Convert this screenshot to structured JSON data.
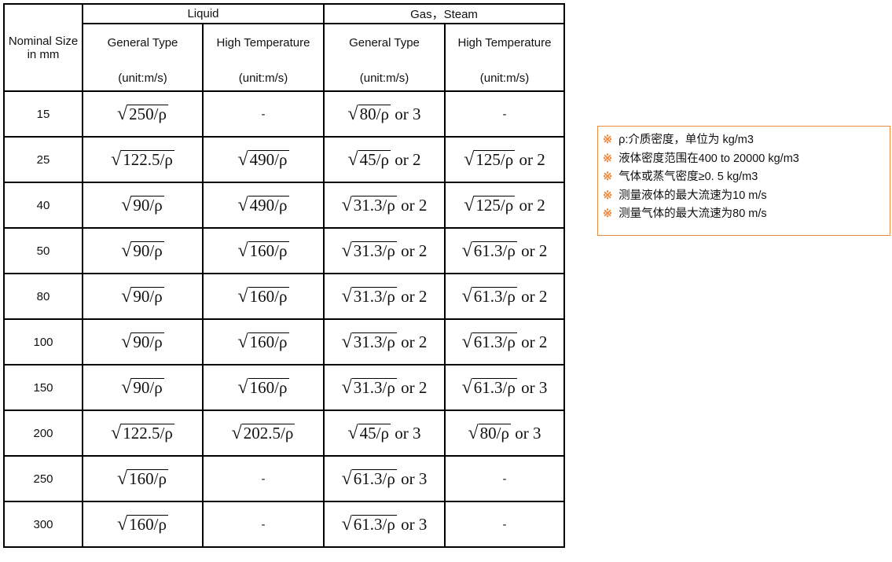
{
  "header": {
    "size": "Nominal Size in mm",
    "liquid": "Liquid",
    "gas": "Gas，Steam",
    "general": "General Type",
    "high": "High Temperature",
    "unit": "(unit:m/s)"
  },
  "rows": [
    {
      "size": "15",
      "cells": [
        {
          "r": "250/ρ",
          "s": ""
        },
        {
          "dash": "-"
        },
        {
          "r": "80/ρ",
          "s": "or 3"
        },
        {
          "dash": "-"
        }
      ]
    },
    {
      "size": "25",
      "cells": [
        {
          "r": "122.5/ρ",
          "s": ""
        },
        {
          "r": "490/ρ",
          "s": ""
        },
        {
          "r": "45/ρ",
          "s": "or 2"
        },
        {
          "r": "125/ρ",
          "s": "or 2"
        }
      ]
    },
    {
      "size": "40",
      "cells": [
        {
          "r": "90/ρ",
          "s": ""
        },
        {
          "r": "490/ρ",
          "s": ""
        },
        {
          "r": "31.3/ρ",
          "s": "or 2"
        },
        {
          "r": "125/ρ",
          "s": "or 2"
        }
      ]
    },
    {
      "size": "50",
      "cells": [
        {
          "r": "90/ρ",
          "s": ""
        },
        {
          "r": "160/ρ",
          "s": ""
        },
        {
          "r": "31.3/ρ",
          "s": "or 2"
        },
        {
          "r": "61.3/ρ",
          "s": "or 2"
        }
      ]
    },
    {
      "size": "80",
      "cells": [
        {
          "r": "90/ρ",
          "s": ""
        },
        {
          "r": "160/ρ",
          "s": ""
        },
        {
          "r": "31.3/ρ",
          "s": "or 2"
        },
        {
          "r": "61.3/ρ",
          "s": "or 2"
        }
      ]
    },
    {
      "size": "100",
      "cells": [
        {
          "r": "90/ρ",
          "s": ""
        },
        {
          "r": "160/ρ",
          "s": ""
        },
        {
          "r": "31.3/ρ",
          "s": "or 2"
        },
        {
          "r": "61.3/ρ",
          "s": "or 2"
        }
      ]
    },
    {
      "size": "150",
      "cells": [
        {
          "r": "90/ρ",
          "s": ""
        },
        {
          "r": "160/ρ",
          "s": ""
        },
        {
          "r": "31.3/ρ",
          "s": "or 2"
        },
        {
          "r": "61.3/ρ",
          "s": "or 3"
        }
      ]
    },
    {
      "size": "200",
      "cells": [
        {
          "r": "122.5/ρ",
          "s": ""
        },
        {
          "r": "202.5/ρ",
          "s": ""
        },
        {
          "r": "45/ρ",
          "s": "or 3"
        },
        {
          "r": "80/ρ",
          "s": "or 3"
        }
      ]
    },
    {
      "size": "250",
      "cells": [
        {
          "r": "160/ρ",
          "s": ""
        },
        {
          "dash": "-"
        },
        {
          "r": "61.3/ρ",
          "s": "or 3"
        },
        {
          "dash": "-"
        }
      ]
    },
    {
      "size": "300",
      "cells": [
        {
          "r": "160/ρ",
          "s": ""
        },
        {
          "dash": "-"
        },
        {
          "r": "61.3/ρ",
          "s": "or 3"
        },
        {
          "dash": "-"
        }
      ]
    }
  ],
  "notes": {
    "mark": "※",
    "color": "#ec8a3f",
    "items": [
      "ρ:介质密度，单位为  kg/m3",
      "液体密度范围在400 to 20000 kg/m3",
      "气体或蒸气密度≥0. 5  kg/m3",
      "测量液体的最大流速为10  m/s",
      "测量气体的最大流速为80  m/s"
    ]
  }
}
